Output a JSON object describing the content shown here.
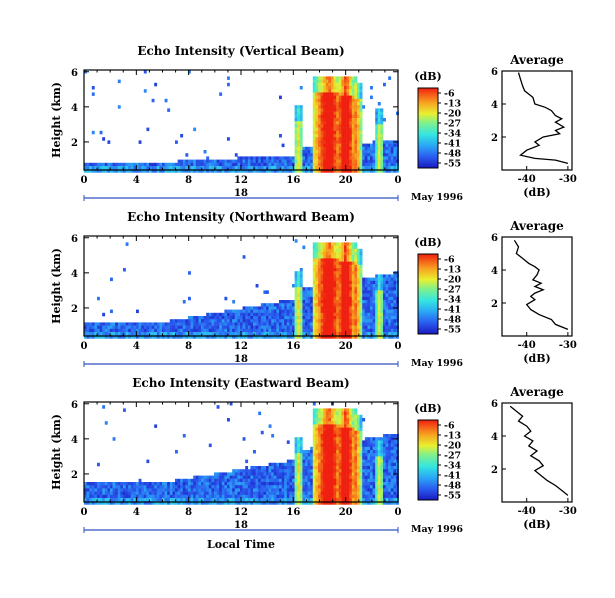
{
  "chart_data": [
    {
      "type": "heatmap",
      "title": "Echo Intensity (Vertical Beam)",
      "ylabel": "Height (km)",
      "xticks": [
        "0",
        "4",
        "8",
        "12",
        "16",
        "20",
        "0"
      ],
      "yticks": [
        "6",
        "4",
        "2"
      ],
      "date_day": "18",
      "date_label": "May 1996",
      "colorbar": {
        "unit": "(dB)",
        "ticks": [
          "-6",
          "-13",
          "-20",
          "-27",
          "-34",
          "-41",
          "-48",
          "-55"
        ]
      },
      "profile": {
        "title": "Average",
        "xlabel": "(dB)",
        "xticks": [
          "-40",
          "-30"
        ],
        "yticks": [
          "6",
          "4",
          "2"
        ],
        "x_range": [
          -46,
          -29
        ],
        "y_range": [
          0,
          6
        ],
        "points": [
          [
            -42,
            5.9
          ],
          [
            -41.5,
            5.5
          ],
          [
            -41,
            5.1
          ],
          [
            -40.5,
            4.8
          ],
          [
            -39.5,
            4.6
          ],
          [
            -38.5,
            4.4
          ],
          [
            -38,
            4.0
          ],
          [
            -35.5,
            3.8
          ],
          [
            -34,
            3.6
          ],
          [
            -33,
            3.3
          ],
          [
            -31.5,
            3.1
          ],
          [
            -33,
            2.9
          ],
          [
            -31,
            2.6
          ],
          [
            -33,
            2.4
          ],
          [
            -32,
            2.2
          ],
          [
            -36,
            2.0
          ],
          [
            -38,
            1.7
          ],
          [
            -37,
            1.5
          ],
          [
            -40,
            1.2
          ],
          [
            -41.5,
            0.9
          ],
          [
            -38,
            0.7
          ],
          [
            -33,
            0.6
          ],
          [
            -30,
            0.4
          ]
        ]
      }
    },
    {
      "type": "heatmap",
      "title": "Echo Intensity (Northward Beam)",
      "ylabel": "Height (km)",
      "xticks": [
        "0",
        "4",
        "8",
        "12",
        "16",
        "20",
        "0"
      ],
      "yticks": [
        "6",
        "4",
        "2"
      ],
      "date_day": "18",
      "date_label": "May 1996",
      "colorbar": {
        "unit": "(dB)",
        "ticks": [
          "-6",
          "-13",
          "-20",
          "-27",
          "-34",
          "-41",
          "-48",
          "-55"
        ]
      },
      "profile": {
        "title": "Average",
        "xlabel": "(dB)",
        "xticks": [
          "-40",
          "-30"
        ],
        "yticks": [
          "6",
          "4",
          "2"
        ],
        "x_range": [
          -46,
          -29
        ],
        "y_range": [
          0,
          6
        ],
        "points": [
          [
            -43,
            5.8
          ],
          [
            -42,
            5.4
          ],
          [
            -42.5,
            5.0
          ],
          [
            -41,
            4.7
          ],
          [
            -39.5,
            4.4
          ],
          [
            -38,
            4.2
          ],
          [
            -37,
            4.0
          ],
          [
            -37.5,
            3.7
          ],
          [
            -38.5,
            3.4
          ],
          [
            -36.5,
            3.2
          ],
          [
            -38,
            3.0
          ],
          [
            -36,
            2.8
          ],
          [
            -38,
            2.6
          ],
          [
            -39,
            2.4
          ],
          [
            -38,
            2.2
          ],
          [
            -40,
            1.9
          ],
          [
            -39,
            1.6
          ],
          [
            -37,
            1.3
          ],
          [
            -34,
            1.0
          ],
          [
            -33,
            0.7
          ],
          [
            -30,
            0.4
          ]
        ]
      }
    },
    {
      "type": "heatmap",
      "title": "Echo Intensity (Eastward Beam)",
      "ylabel": "Height (km)",
      "xticks": [
        "0",
        "4",
        "8",
        "12",
        "16",
        "20",
        "0"
      ],
      "yticks": [
        "6",
        "4",
        "2"
      ],
      "date_day": "18",
      "date_label": "May 1996",
      "xlabel": "Local Time",
      "colorbar": {
        "unit": "(dB)",
        "ticks": [
          "-6",
          "-13",
          "-20",
          "-27",
          "-34",
          "-41",
          "-48",
          "-55"
        ]
      },
      "profile": {
        "title": "Average",
        "xlabel": "(dB)",
        "xticks": [
          "-40",
          "-30"
        ],
        "yticks": [
          "6",
          "4",
          "2"
        ],
        "x_range": [
          -46,
          -29
        ],
        "y_range": [
          0,
          6
        ],
        "points": [
          [
            -44,
            5.8
          ],
          [
            -42.5,
            5.5
          ],
          [
            -41,
            5.2
          ],
          [
            -42,
            4.9
          ],
          [
            -40,
            4.6
          ],
          [
            -39,
            4.3
          ],
          [
            -40.5,
            4.0
          ],
          [
            -38.5,
            3.7
          ],
          [
            -39.5,
            3.4
          ],
          [
            -37.5,
            3.1
          ],
          [
            -39,
            2.8
          ],
          [
            -37,
            2.5
          ],
          [
            -36,
            2.2
          ],
          [
            -38,
            1.9
          ],
          [
            -36.5,
            1.6
          ],
          [
            -35,
            1.3
          ],
          [
            -33,
            1.0
          ],
          [
            -31.5,
            0.7
          ],
          [
            -30,
            0.4
          ]
        ]
      }
    }
  ]
}
